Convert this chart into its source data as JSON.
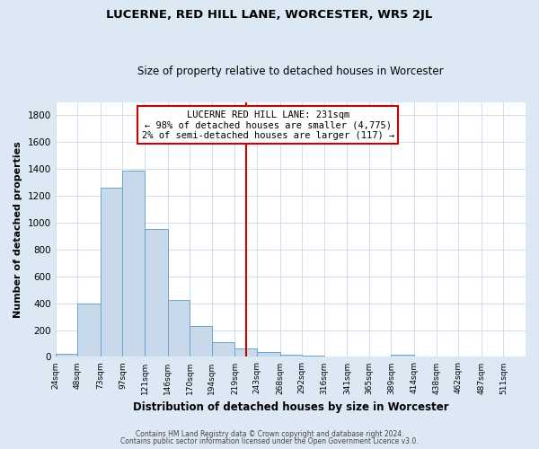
{
  "title": "LUCERNE, RED HILL LANE, WORCESTER, WR5 2JL",
  "subtitle": "Size of property relative to detached houses in Worcester",
  "xlabel": "Distribution of detached houses by size in Worcester",
  "ylabel": "Number of detached properties",
  "bin_labels": [
    "24sqm",
    "48sqm",
    "73sqm",
    "97sqm",
    "121sqm",
    "146sqm",
    "170sqm",
    "194sqm",
    "219sqm",
    "243sqm",
    "268sqm",
    "292sqm",
    "316sqm",
    "341sqm",
    "365sqm",
    "389sqm",
    "414sqm",
    "438sqm",
    "462sqm",
    "487sqm",
    "511sqm"
  ],
  "bin_edges": [
    24,
    48,
    73,
    97,
    121,
    146,
    170,
    194,
    219,
    243,
    268,
    292,
    316,
    341,
    365,
    389,
    414,
    438,
    462,
    487,
    511
  ],
  "bar_heights": [
    25,
    400,
    1260,
    1390,
    950,
    425,
    230,
    110,
    65,
    35,
    15,
    10,
    5,
    5,
    3,
    15,
    2,
    1,
    1,
    0,
    0
  ],
  "bar_color": "#c9d9ec",
  "bar_edge_color": "#6ba3c8",
  "vline_x": 231,
  "vline_color": "#cc0000",
  "annotation_title": "LUCERNE RED HILL LANE: 231sqm",
  "annotation_line1": "← 98% of detached houses are smaller (4,775)",
  "annotation_line2": "2% of semi-detached houses are larger (117) →",
  "annotation_box_color": "#ffffff",
  "annotation_box_edge": "#cc0000",
  "ylim": [
    0,
    1900
  ],
  "yticks": [
    0,
    200,
    400,
    600,
    800,
    1000,
    1200,
    1400,
    1600,
    1800
  ],
  "footer1": "Contains HM Land Registry data © Crown copyright and database right 2024.",
  "footer2": "Contains public sector information licensed under the Open Government Licence v3.0.",
  "bg_color": "#dde8f5",
  "plot_bg_color": "#ffffff"
}
